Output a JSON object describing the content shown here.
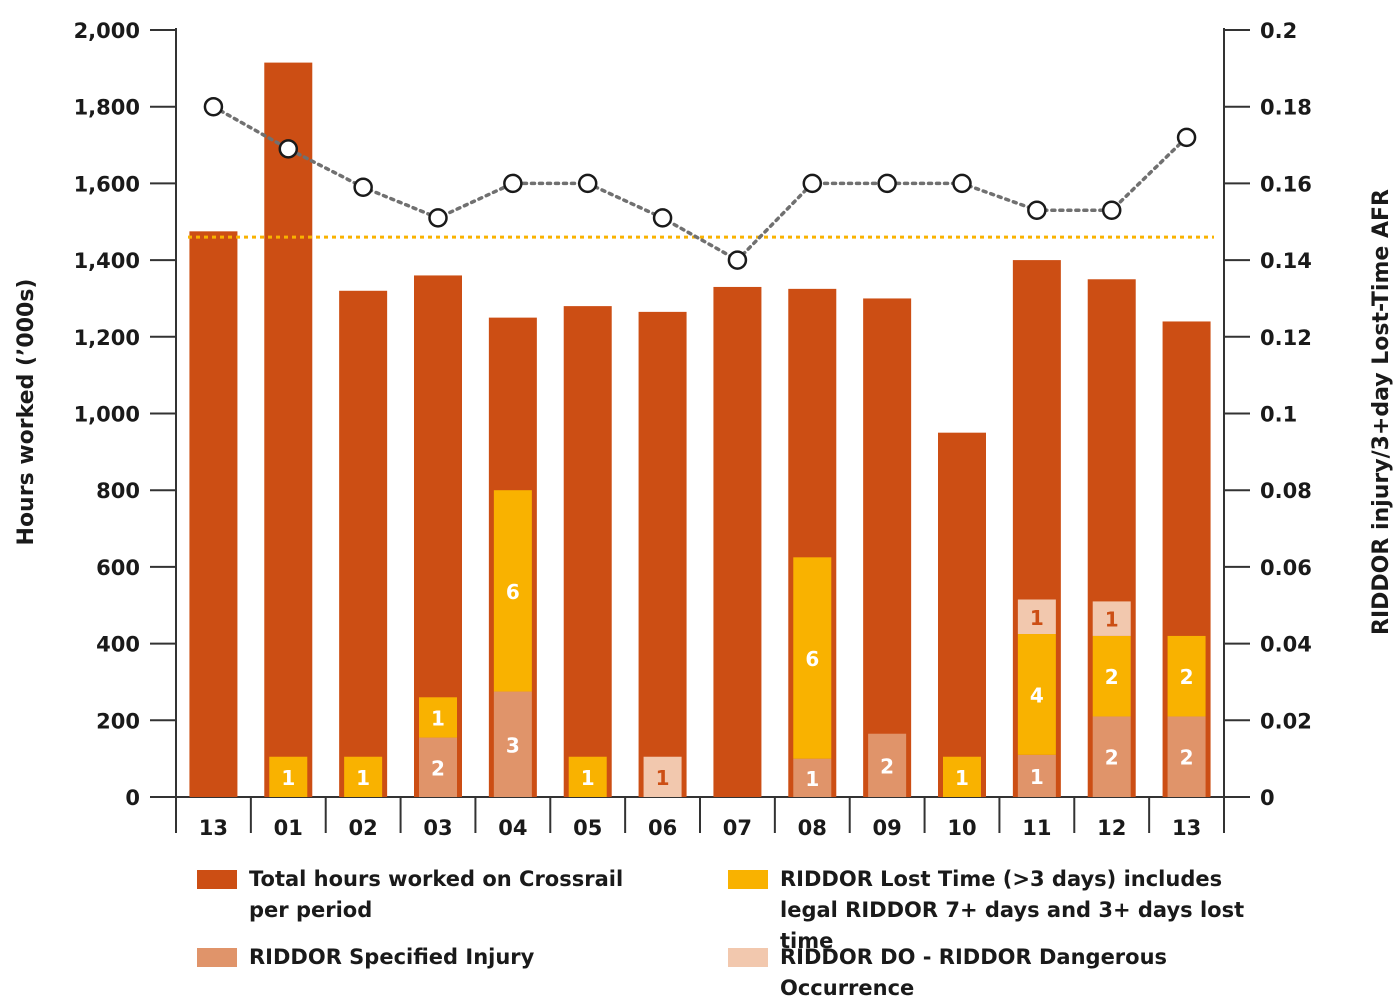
{
  "chart_data": {
    "type": "bar",
    "categories": [
      "13",
      "01",
      "02",
      "03",
      "04",
      "05",
      "06",
      "07",
      "08",
      "09",
      "10",
      "11",
      "12",
      "13"
    ],
    "ylabel": "Hours worked (’000s)",
    "y2label": "RIDDOR injury/3+day Lost-Time AFR",
    "ylim": [
      0,
      2000
    ],
    "y2lim": [
      0,
      0.2
    ],
    "yticks": [
      "0",
      "200",
      "400",
      "600",
      "800",
      "1,000",
      "1,200",
      "1,400",
      "1,600",
      "1,800",
      "2,000"
    ],
    "y2ticks": [
      "0",
      "0.02",
      "0.04",
      "0.06",
      "0.08",
      "0.1",
      "0.12",
      "0.14",
      "0.16",
      "0.18",
      "0.2"
    ],
    "series": [
      {
        "name": "Total hours worked on Crossrail per period",
        "color": "#cc4e14",
        "values": [
          1475,
          1915,
          1320,
          1360,
          1250,
          1280,
          1265,
          1330,
          1325,
          1300,
          950,
          1400,
          1350,
          1240
        ]
      },
      {
        "name": "RIDDOR Specified Injury",
        "color": "#e0946a",
        "values": [
          0,
          0,
          0,
          155,
          275,
          0,
          0,
          0,
          100,
          165,
          0,
          110,
          210,
          210
        ],
        "counts": [
          "",
          "",
          "",
          "2",
          "3",
          "",
          "",
          "",
          "1",
          "2",
          "",
          "1",
          "2",
          "2"
        ]
      },
      {
        "name": "RIDDOR Lost Time (>3 days) includes legal RIDDOR 7+ days and 3+ days lost time",
        "color": "#f9b200",
        "values": [
          0,
          105,
          105,
          105,
          525,
          105,
          0,
          0,
          525,
          0,
          105,
          315,
          210,
          210
        ],
        "counts": [
          "",
          "1",
          "1",
          "1",
          "6",
          "1",
          "",
          "",
          "6",
          "",
          "1",
          "4",
          "2",
          "2"
        ]
      },
      {
        "name": "RIDDOR DO - RIDDOR Dangerous Occurrence",
        "color": "#f2c8ae",
        "values": [
          0,
          0,
          0,
          0,
          0,
          0,
          105,
          0,
          0,
          0,
          0,
          90,
          90,
          0
        ],
        "counts": [
          "",
          "",
          "",
          "",
          "",
          "",
          "1",
          "",
          "",
          "",
          "",
          "1",
          "1",
          ""
        ]
      },
      {
        "name": "",
        "type": "line",
        "axis": "right",
        "color": "#707070",
        "values": [
          0.18,
          0.169,
          0.159,
          0.151,
          0.16,
          0.16,
          0.151,
          0.14,
          0.16,
          0.16,
          0.16,
          0.153,
          0.153,
          0.172
        ]
      },
      {
        "name": "",
        "type": "hline",
        "axis": "right",
        "color": "#f9b200",
        "value": 0.146
      }
    ],
    "legend_position": "bottom"
  },
  "legend": [
    {
      "label": "Total hours worked on Crossrail per period",
      "color": "#cc4e14"
    },
    {
      "label": "RIDDOR Lost Time (>3 days) includes legal RIDDOR 7+ days and 3+ days lost time",
      "color": "#f9b200"
    },
    {
      "label": "RIDDOR Specified Injury",
      "color": "#e0946a"
    },
    {
      "label": "RIDDOR DO - RIDDOR Dangerous Occurrence",
      "color": "#f2c8ae"
    }
  ]
}
